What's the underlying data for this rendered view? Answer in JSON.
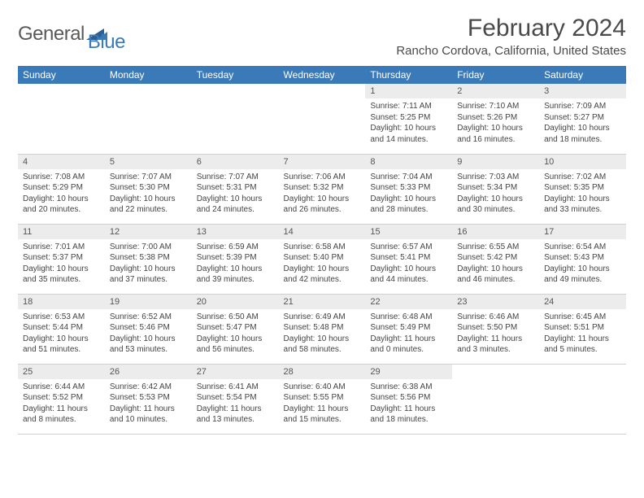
{
  "logo": {
    "text1": "General",
    "text2": "Blue"
  },
  "title": "February 2024",
  "location": "Rancho Cordova, California, United States",
  "header_bg": "#3b7ab8",
  "header_fg": "#ffffff",
  "daynum_bg": "#ececec",
  "border_color": "#d0d0d0",
  "weekdays": [
    "Sunday",
    "Monday",
    "Tuesday",
    "Wednesday",
    "Thursday",
    "Friday",
    "Saturday"
  ],
  "weeks": [
    [
      null,
      null,
      null,
      null,
      {
        "n": "1",
        "sunrise": "7:11 AM",
        "sunset": "5:25 PM",
        "daylight": "10 hours and 14 minutes."
      },
      {
        "n": "2",
        "sunrise": "7:10 AM",
        "sunset": "5:26 PM",
        "daylight": "10 hours and 16 minutes."
      },
      {
        "n": "3",
        "sunrise": "7:09 AM",
        "sunset": "5:27 PM",
        "daylight": "10 hours and 18 minutes."
      }
    ],
    [
      {
        "n": "4",
        "sunrise": "7:08 AM",
        "sunset": "5:29 PM",
        "daylight": "10 hours and 20 minutes."
      },
      {
        "n": "5",
        "sunrise": "7:07 AM",
        "sunset": "5:30 PM",
        "daylight": "10 hours and 22 minutes."
      },
      {
        "n": "6",
        "sunrise": "7:07 AM",
        "sunset": "5:31 PM",
        "daylight": "10 hours and 24 minutes."
      },
      {
        "n": "7",
        "sunrise": "7:06 AM",
        "sunset": "5:32 PM",
        "daylight": "10 hours and 26 minutes."
      },
      {
        "n": "8",
        "sunrise": "7:04 AM",
        "sunset": "5:33 PM",
        "daylight": "10 hours and 28 minutes."
      },
      {
        "n": "9",
        "sunrise": "7:03 AM",
        "sunset": "5:34 PM",
        "daylight": "10 hours and 30 minutes."
      },
      {
        "n": "10",
        "sunrise": "7:02 AM",
        "sunset": "5:35 PM",
        "daylight": "10 hours and 33 minutes."
      }
    ],
    [
      {
        "n": "11",
        "sunrise": "7:01 AM",
        "sunset": "5:37 PM",
        "daylight": "10 hours and 35 minutes."
      },
      {
        "n": "12",
        "sunrise": "7:00 AM",
        "sunset": "5:38 PM",
        "daylight": "10 hours and 37 minutes."
      },
      {
        "n": "13",
        "sunrise": "6:59 AM",
        "sunset": "5:39 PM",
        "daylight": "10 hours and 39 minutes."
      },
      {
        "n": "14",
        "sunrise": "6:58 AM",
        "sunset": "5:40 PM",
        "daylight": "10 hours and 42 minutes."
      },
      {
        "n": "15",
        "sunrise": "6:57 AM",
        "sunset": "5:41 PM",
        "daylight": "10 hours and 44 minutes."
      },
      {
        "n": "16",
        "sunrise": "6:55 AM",
        "sunset": "5:42 PM",
        "daylight": "10 hours and 46 minutes."
      },
      {
        "n": "17",
        "sunrise": "6:54 AM",
        "sunset": "5:43 PM",
        "daylight": "10 hours and 49 minutes."
      }
    ],
    [
      {
        "n": "18",
        "sunrise": "6:53 AM",
        "sunset": "5:44 PM",
        "daylight": "10 hours and 51 minutes."
      },
      {
        "n": "19",
        "sunrise": "6:52 AM",
        "sunset": "5:46 PM",
        "daylight": "10 hours and 53 minutes."
      },
      {
        "n": "20",
        "sunrise": "6:50 AM",
        "sunset": "5:47 PM",
        "daylight": "10 hours and 56 minutes."
      },
      {
        "n": "21",
        "sunrise": "6:49 AM",
        "sunset": "5:48 PM",
        "daylight": "10 hours and 58 minutes."
      },
      {
        "n": "22",
        "sunrise": "6:48 AM",
        "sunset": "5:49 PM",
        "daylight": "11 hours and 0 minutes."
      },
      {
        "n": "23",
        "sunrise": "6:46 AM",
        "sunset": "5:50 PM",
        "daylight": "11 hours and 3 minutes."
      },
      {
        "n": "24",
        "sunrise": "6:45 AM",
        "sunset": "5:51 PM",
        "daylight": "11 hours and 5 minutes."
      }
    ],
    [
      {
        "n": "25",
        "sunrise": "6:44 AM",
        "sunset": "5:52 PM",
        "daylight": "11 hours and 8 minutes."
      },
      {
        "n": "26",
        "sunrise": "6:42 AM",
        "sunset": "5:53 PM",
        "daylight": "11 hours and 10 minutes."
      },
      {
        "n": "27",
        "sunrise": "6:41 AM",
        "sunset": "5:54 PM",
        "daylight": "11 hours and 13 minutes."
      },
      {
        "n": "28",
        "sunrise": "6:40 AM",
        "sunset": "5:55 PM",
        "daylight": "11 hours and 15 minutes."
      },
      {
        "n": "29",
        "sunrise": "6:38 AM",
        "sunset": "5:56 PM",
        "daylight": "11 hours and 18 minutes."
      },
      null,
      null
    ]
  ],
  "labels": {
    "sunrise": "Sunrise:",
    "sunset": "Sunset:",
    "daylight": "Daylight:"
  }
}
